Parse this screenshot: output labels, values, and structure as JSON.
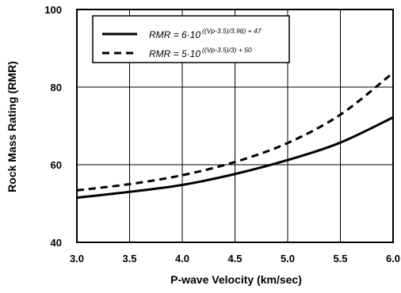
{
  "chart_data": {
    "type": "line",
    "xlabel": "P-wave Velocity (km/sec)",
    "ylabel": "Rock Mass Rating (RMR)",
    "xlim": [
      3.0,
      6.0
    ],
    "ylim": [
      40,
      100
    ],
    "xticks": [
      "3.0",
      "3.5",
      "4.0",
      "4.5",
      "5.0",
      "5.5",
      "6.0"
    ],
    "yticks": [
      "40",
      "60",
      "80",
      "100"
    ],
    "grid": true,
    "legend_position": "top-left",
    "x": [
      3.0,
      3.5,
      4.0,
      4.5,
      5.0,
      5.5,
      6.0
    ],
    "series": [
      {
        "legend_base": "RMR = 6·10",
        "legend_exp": "((Vp-3.5)/3.96) + 47",
        "style": "solid",
        "values": [
          51.5,
          53.0,
          54.8,
          57.6,
          61.2,
          65.7,
          72.2
        ]
      },
      {
        "legend_base": "RMR = 5·10",
        "legend_exp": "((Vp-3.5)/3) + 50",
        "style": "dashed",
        "values": [
          53.4,
          55.0,
          57.3,
          60.7,
          65.6,
          72.9,
          83.7
        ]
      }
    ]
  }
}
